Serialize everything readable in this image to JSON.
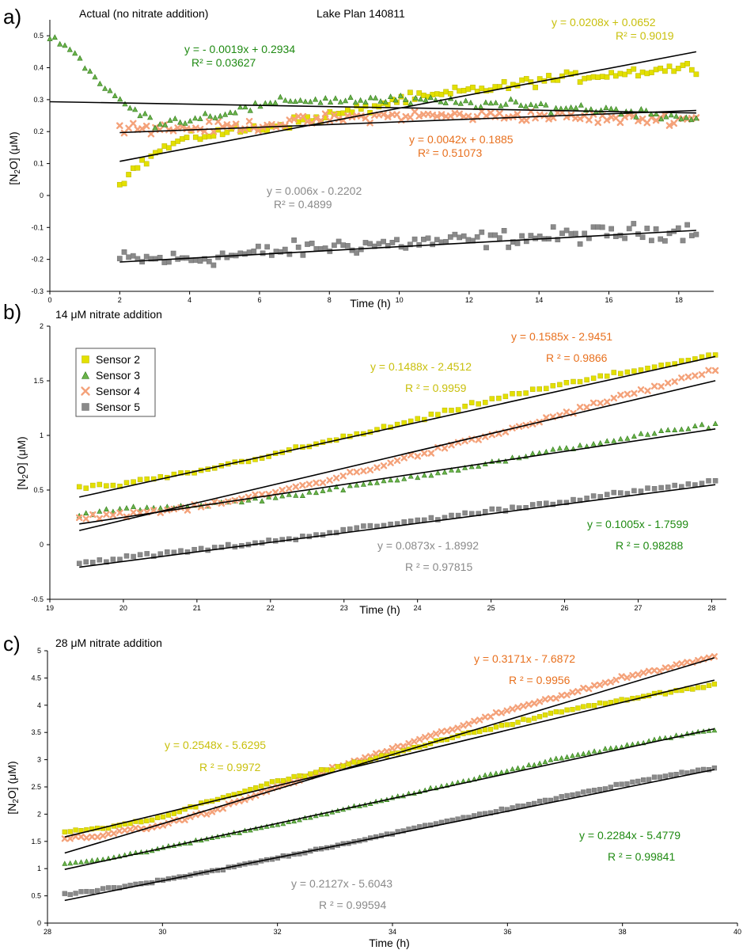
{
  "colors": {
    "sensor2": "#e3e000",
    "sensor3": "#3e9a1f",
    "sensor4": "#f4a27a",
    "sensor5": "#8a8a8a",
    "eq_sensor2": "#c9c00d",
    "eq_sensor3": "#1f8a12",
    "eq_sensor4": "#e8701e",
    "eq_sensor5": "#8a8a8a",
    "axis": "#000000",
    "trend": "#000000"
  },
  "legend": [
    {
      "label": "Sensor 2",
      "key": "sensor2",
      "marker": "square"
    },
    {
      "label": "Sensor 3",
      "key": "sensor3",
      "marker": "triangle"
    },
    {
      "label": "Sensor 4",
      "key": "sensor4",
      "marker": "cross"
    },
    {
      "label": "Sensor 5",
      "key": "sensor5",
      "marker": "square"
    }
  ],
  "chart_data": [
    {
      "panel_label": "a)",
      "type": "scatter",
      "title": "Actual (no nitrate addition)",
      "subtitle": "Lake Plan 140811",
      "xlabel": "Time (h)",
      "ylabel_prefix": "[N",
      "ylabel_sub": "2",
      "ylabel_suffix": "O] (μM)",
      "xlim": [
        0,
        19
      ],
      "ylim": [
        -0.3,
        0.55
      ],
      "xticks": [
        0,
        2,
        4,
        6,
        8,
        10,
        12,
        14,
        16,
        18
      ],
      "yticks": [
        -0.3,
        -0.2,
        -0.1,
        0,
        0.1,
        0.2,
        0.3,
        0.4,
        0.5
      ],
      "series": [
        {
          "name": "Sensor 2",
          "key": "sensor2",
          "x_range": [
            2,
            18.5
          ],
          "trend": {
            "slope": 0.0208,
            "intercept": 0.0652
          },
          "points": [
            [
              2,
              0.04
            ],
            [
              2.5,
              0.09
            ],
            [
              3,
              0.13
            ],
            [
              3.5,
              0.16
            ],
            [
              4,
              0.18
            ],
            [
              5,
              0.2
            ],
            [
              6,
              0.21
            ],
            [
              7,
              0.23
            ],
            [
              8,
              0.25
            ],
            [
              9,
              0.27
            ],
            [
              10,
              0.3
            ],
            [
              11,
              0.31
            ],
            [
              12,
              0.33
            ],
            [
              13,
              0.34
            ],
            [
              14,
              0.36
            ],
            [
              15,
              0.37
            ],
            [
              16,
              0.38
            ],
            [
              17,
              0.39
            ],
            [
              18,
              0.4
            ],
            [
              18.5,
              0.4
            ]
          ],
          "noise": 0.018,
          "equation": "y = 0.0208x + 0.0652",
          "r2": "R² = 0.9019"
        },
        {
          "name": "Sensor 3",
          "key": "sensor3",
          "x_range": [
            0,
            18.5
          ],
          "trend": {
            "slope": -0.0019,
            "intercept": 0.2934
          },
          "points": [
            [
              0,
              0.5
            ],
            [
              0.5,
              0.47
            ],
            [
              1,
              0.41
            ],
            [
              1.5,
              0.34
            ],
            [
              2,
              0.3
            ],
            [
              2.5,
              0.26
            ],
            [
              3,
              0.23
            ],
            [
              4,
              0.24
            ],
            [
              5,
              0.26
            ],
            [
              6,
              0.28
            ],
            [
              7,
              0.3
            ],
            [
              8,
              0.3
            ],
            [
              10,
              0.3
            ],
            [
              12,
              0.29
            ],
            [
              14,
              0.28
            ],
            [
              16,
              0.27
            ],
            [
              18,
              0.25
            ],
            [
              18.5,
              0.24
            ]
          ],
          "noise": 0.016,
          "equation": "y = - 0.0019x + 0.2934",
          "r2": "R² = 0.03627"
        },
        {
          "name": "Sensor 4",
          "key": "sensor4",
          "x_range": [
            2,
            18.5
          ],
          "trend": {
            "slope": 0.0042,
            "intercept": 0.1885
          },
          "points": [
            [
              2,
              0.22
            ],
            [
              3,
              0.21
            ],
            [
              4,
              0.21
            ],
            [
              6,
              0.22
            ],
            [
              8,
              0.24
            ],
            [
              10,
              0.25
            ],
            [
              12,
              0.25
            ],
            [
              14,
              0.25
            ],
            [
              16,
              0.24
            ],
            [
              18,
              0.24
            ],
            [
              18.5,
              0.24
            ]
          ],
          "noise": 0.018,
          "equation": "y = 0.0042x + 0.1885",
          "r2": "R² = 0.51073"
        },
        {
          "name": "Sensor 5",
          "key": "sensor5",
          "x_range": [
            2,
            18.5
          ],
          "trend": {
            "slope": 0.006,
            "intercept": -0.2202
          },
          "points": [
            [
              2,
              -0.2
            ],
            [
              4,
              -0.2
            ],
            [
              6,
              -0.18
            ],
            [
              8,
              -0.16
            ],
            [
              10,
              -0.15
            ],
            [
              12,
              -0.14
            ],
            [
              14,
              -0.13
            ],
            [
              16,
              -0.12
            ],
            [
              18,
              -0.11
            ],
            [
              18.5,
              -0.11
            ]
          ],
          "noise": 0.03,
          "equation": "y = 0.006x - 0.2202",
          "r2": "R² = 0.4899"
        }
      ]
    },
    {
      "panel_label": "b)",
      "type": "scatter",
      "title": "14 μM nitrate addition",
      "xlabel": "Time (h)",
      "ylabel_prefix": "[N",
      "ylabel_sub": "2",
      "ylabel_suffix": "O] (μM)",
      "xlim": [
        19,
        28.2
      ],
      "ylim": [
        -0.5,
        2
      ],
      "xticks": [
        19,
        20,
        21,
        22,
        23,
        24,
        25,
        26,
        27,
        28
      ],
      "yticks": [
        -0.5,
        0,
        0.5,
        1,
        1.5,
        2
      ],
      "series": [
        {
          "name": "Sensor 2",
          "key": "sensor2",
          "x_range": [
            19.4,
            28.05
          ],
          "trend": {
            "slope": 0.1488,
            "intercept": -2.4512
          },
          "points": [
            [
              19.4,
              0.52
            ],
            [
              20,
              0.55
            ],
            [
              21,
              0.67
            ],
            [
              22,
              0.82
            ],
            [
              23,
              0.98
            ],
            [
              24,
              1.14
            ],
            [
              25,
              1.33
            ],
            [
              26,
              1.47
            ],
            [
              27,
              1.6
            ],
            [
              28.05,
              1.74
            ]
          ],
          "noise": 0.02,
          "equation": "y = 0.1488x - 2.4512",
          "r2": "R ² = 0.9959"
        },
        {
          "name": "Sensor 3",
          "key": "sensor3",
          "x_range": [
            19.4,
            28.05
          ],
          "trend": {
            "slope": 0.1005,
            "intercept": -1.7599
          },
          "points": [
            [
              19.4,
              0.27
            ],
            [
              20,
              0.33
            ],
            [
              21,
              0.36
            ],
            [
              22,
              0.43
            ],
            [
              23,
              0.52
            ],
            [
              24,
              0.63
            ],
            [
              25,
              0.75
            ],
            [
              26,
              0.88
            ],
            [
              27,
              1.0
            ],
            [
              28.05,
              1.1
            ]
          ],
          "noise": 0.02,
          "equation": "y = 0.1005x - 1.7599",
          "r2": "R ² = 0.98288"
        },
        {
          "name": "Sensor 4",
          "key": "sensor4",
          "x_range": [
            19.4,
            28.05
          ],
          "trend": {
            "slope": 0.1585,
            "intercept": -2.9451
          },
          "points": [
            [
              19.4,
              0.25
            ],
            [
              20,
              0.28
            ],
            [
              21,
              0.34
            ],
            [
              22,
              0.47
            ],
            [
              23,
              0.63
            ],
            [
              24,
              0.82
            ],
            [
              25,
              1.0
            ],
            [
              26,
              1.2
            ],
            [
              27,
              1.4
            ],
            [
              28.05,
              1.6
            ]
          ],
          "noise": 0.025,
          "equation": "y = 0.1585x - 2.9451",
          "r2": "R ² = 0.9866"
        },
        {
          "name": "Sensor 5",
          "key": "sensor5",
          "x_range": [
            19.4,
            28.05
          ],
          "trend": {
            "slope": 0.0873,
            "intercept": -1.8992
          },
          "points": [
            [
              19.4,
              -0.17
            ],
            [
              20,
              -0.12
            ],
            [
              21,
              -0.05
            ],
            [
              22,
              0.03
            ],
            [
              23,
              0.13
            ],
            [
              24,
              0.22
            ],
            [
              25,
              0.31
            ],
            [
              26,
              0.4
            ],
            [
              27,
              0.49
            ],
            [
              28.05,
              0.58
            ]
          ],
          "noise": 0.02,
          "equation": "y = 0.0873x - 1.8992",
          "r2": "R ² = 0.97815"
        }
      ]
    },
    {
      "panel_label": "c)",
      "type": "scatter",
      "title": "28 μM nitrate addition",
      "xlabel": "Time (h)",
      "ylabel_prefix": "[N",
      "ylabel_sub": "2",
      "ylabel_suffix": "O] (μM)",
      "xlim": [
        28,
        40
      ],
      "ylim": [
        0,
        5
      ],
      "xticks": [
        28,
        30,
        32,
        34,
        36,
        38,
        40
      ],
      "yticks": [
        0,
        0.5,
        1,
        1.5,
        2,
        2.5,
        3,
        3.5,
        4,
        4.5,
        5
      ],
      "series": [
        {
          "name": "Sensor 2",
          "key": "sensor2",
          "x_range": [
            28.3,
            39.6
          ],
          "trend": {
            "slope": 0.2548,
            "intercept": -5.6295
          },
          "points": [
            [
              28.3,
              1.67
            ],
            [
              29,
              1.75
            ],
            [
              30,
              1.95
            ],
            [
              31,
              2.3
            ],
            [
              32,
              2.6
            ],
            [
              33,
              2.85
            ],
            [
              34,
              3.1
            ],
            [
              35,
              3.4
            ],
            [
              36,
              3.65
            ],
            [
              37,
              3.9
            ],
            [
              38,
              4.1
            ],
            [
              39,
              4.28
            ],
            [
              39.6,
              4.37
            ]
          ],
          "noise": 0.025,
          "equation": "y = 0.2548x - 5.6295",
          "r2": "R ² = 0.9972"
        },
        {
          "name": "Sensor 3",
          "key": "sensor3",
          "x_range": [
            28.3,
            39.6
          ],
          "trend": {
            "slope": 0.2284,
            "intercept": -5.4779
          },
          "points": [
            [
              28.3,
              1.1
            ],
            [
              29,
              1.18
            ],
            [
              30,
              1.38
            ],
            [
              31,
              1.6
            ],
            [
              32,
              1.82
            ],
            [
              33,
              2.05
            ],
            [
              34,
              2.3
            ],
            [
              35,
              2.55
            ],
            [
              36,
              2.8
            ],
            [
              37,
              3.05
            ],
            [
              38,
              3.25
            ],
            [
              39,
              3.45
            ],
            [
              39.6,
              3.55
            ]
          ],
          "noise": 0.02,
          "equation": "y = 0.2284x - 5.4779",
          "r2": "R ² = 0.99841"
        },
        {
          "name": "Sensor 4",
          "key": "sensor4",
          "x_range": [
            28.3,
            39.6
          ],
          "trend": {
            "slope": 0.3171,
            "intercept": -7.6872
          },
          "points": [
            [
              28.3,
              1.55
            ],
            [
              29,
              1.62
            ],
            [
              30,
              1.8
            ],
            [
              31,
              2.1
            ],
            [
              32,
              2.5
            ],
            [
              33,
              2.85
            ],
            [
              34,
              3.2
            ],
            [
              35,
              3.55
            ],
            [
              36,
              3.9
            ],
            [
              37,
              4.2
            ],
            [
              38,
              4.5
            ],
            [
              39,
              4.75
            ],
            [
              39.6,
              4.9
            ]
          ],
          "noise": 0.03,
          "equation": "y = 0.3171x - 7.6872",
          "r2": "R ² = 0.9956"
        },
        {
          "name": "Sensor 5",
          "key": "sensor5",
          "x_range": [
            28.3,
            39.6
          ],
          "trend": {
            "slope": 0.2127,
            "intercept": -5.6043
          },
          "points": [
            [
              28.3,
              0.52
            ],
            [
              29,
              0.62
            ],
            [
              30,
              0.78
            ],
            [
              31,
              0.98
            ],
            [
              32,
              1.2
            ],
            [
              33,
              1.42
            ],
            [
              34,
              1.65
            ],
            [
              35,
              1.88
            ],
            [
              36,
              2.1
            ],
            [
              37,
              2.32
            ],
            [
              38,
              2.55
            ],
            [
              39,
              2.75
            ],
            [
              39.6,
              2.85
            ]
          ],
          "noise": 0.02,
          "equation": "y = 0.2127x - 5.6043",
          "r2": "R ² = 0.99594"
        }
      ]
    }
  ]
}
